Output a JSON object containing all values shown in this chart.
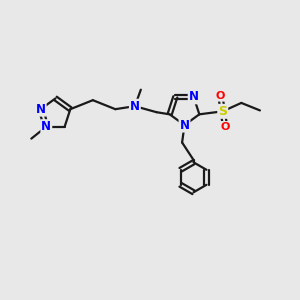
{
  "bg_color": "#e8e8e8",
  "bond_color": "#1a1a1a",
  "nitrogen_color": "#0000ff",
  "sulfur_color": "#cccc00",
  "oxygen_color": "#ff0000",
  "carbon_color": "#1a1a1a",
  "line_width": 1.6,
  "figsize": [
    3.0,
    3.0
  ],
  "dpi": 100,
  "xlim": [
    0,
    10
  ],
  "ylim": [
    0,
    10
  ]
}
